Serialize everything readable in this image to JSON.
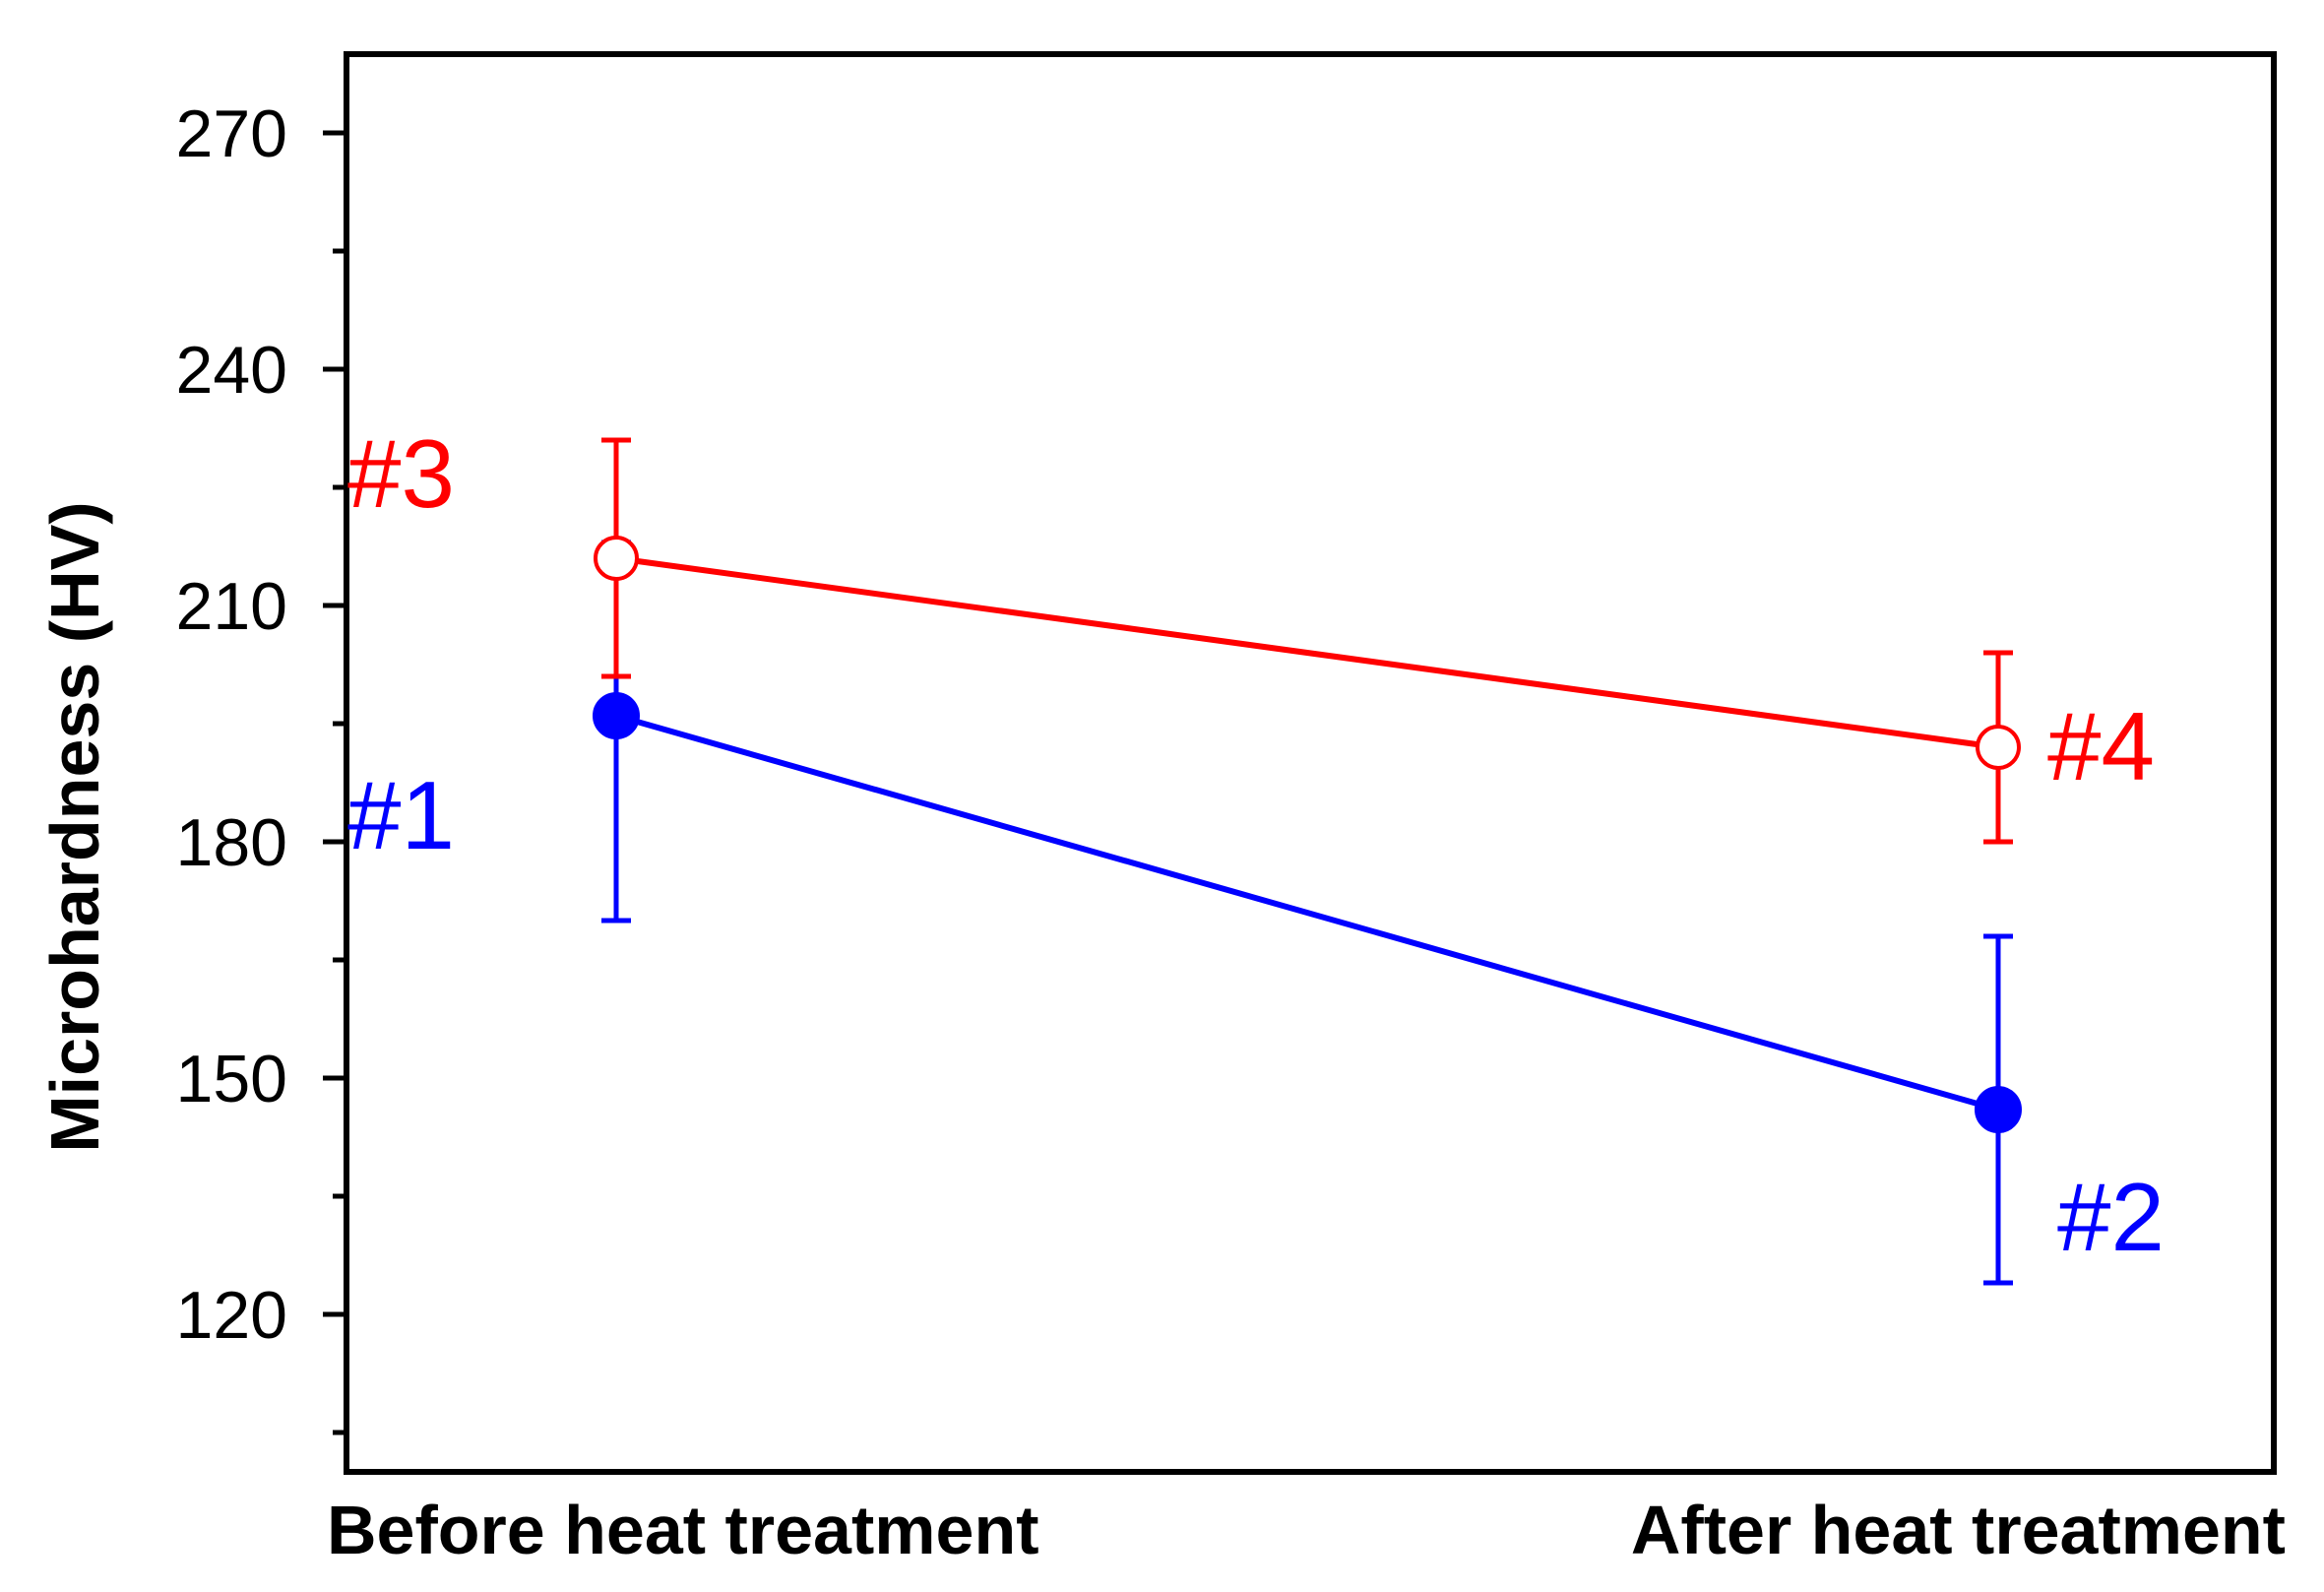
{
  "chart_data": {
    "type": "line",
    "title": "",
    "xlabel": "",
    "ylabel": "Microhardness (HV)",
    "categories": [
      "Before heat treatment",
      "After heat treatment"
    ],
    "ylim": [
      105,
      280
    ],
    "yticks": [
      120,
      150,
      180,
      210,
      240,
      270
    ],
    "grid": false,
    "series": [
      {
        "color": "#0000ff",
        "marker": "filled-circle",
        "values": [
          196,
          146
        ],
        "errors": [
          [
            26,
            22
          ],
          [
            22,
            22
          ]
        ],
        "point_labels": [
          "#1",
          "#2"
        ]
      },
      {
        "color": "#ff0000",
        "marker": "open-circle",
        "values": [
          216,
          192
        ],
        "errors": [
          [
            15,
            15
          ],
          [
            12,
            12
          ]
        ],
        "point_labels": [
          "#3",
          "#4"
        ]
      }
    ]
  }
}
